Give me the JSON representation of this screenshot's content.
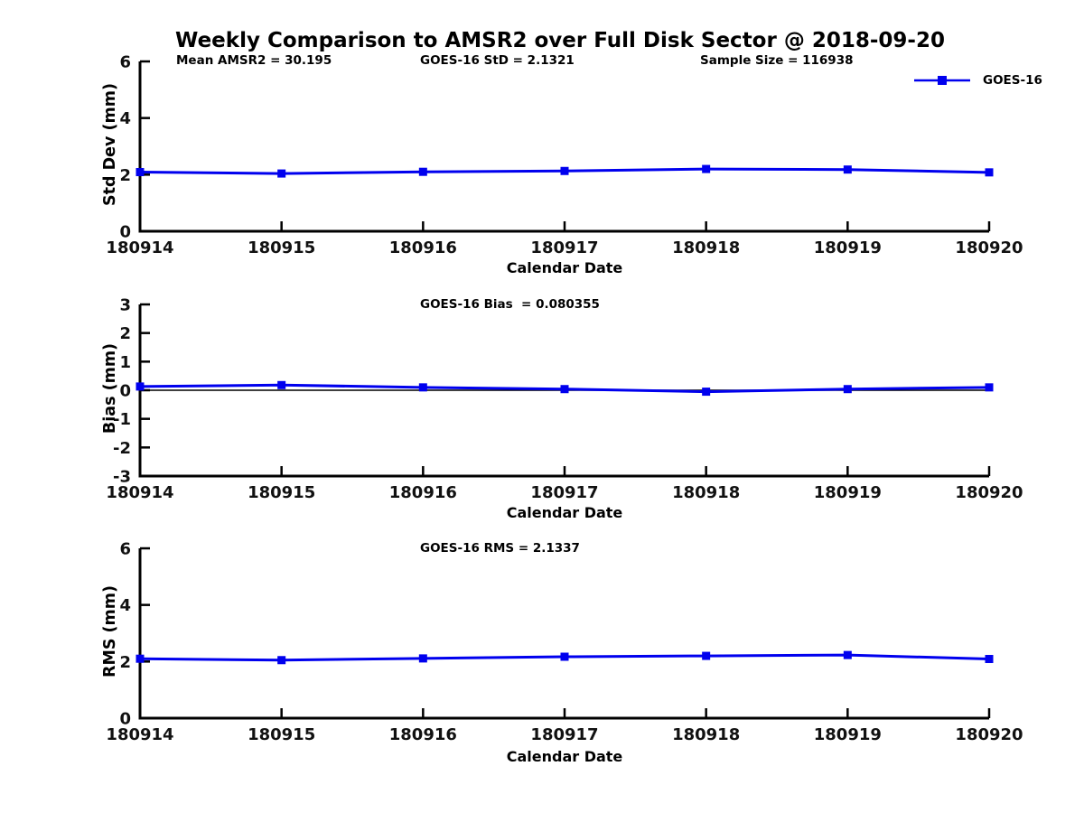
{
  "title": "Weekly Comparison to AMSR2 over Full Disk Sector @ 2018-09-20",
  "colors": {
    "series": "#0000EE",
    "axis": "#000000",
    "zero_line": "#000000",
    "background": "#FFFFFF"
  },
  "legend": {
    "label": "GOES-16"
  },
  "chart_data": [
    {
      "type": "line",
      "id": "std-dev",
      "x_categories": [
        "180914",
        "180915",
        "180916",
        "180917",
        "180918",
        "180919",
        "180920"
      ],
      "series": [
        {
          "name": "GOES-16",
          "marker": "square",
          "values": [
            2.09,
            2.04,
            2.1,
            2.13,
            2.2,
            2.18,
            2.08
          ]
        }
      ],
      "xlabel": "Calendar Date",
      "ylabel": "Std Dev (mm)",
      "ylim": [
        0,
        6
      ],
      "yticks": [
        0,
        2,
        4,
        6
      ],
      "grid": false,
      "zero_line": false,
      "legend_position": "top-right",
      "annotations": [
        "Mean AMSR2 = 30.195",
        "GOES-16 StD = 2.1321",
        "Sample Size = 116938"
      ]
    },
    {
      "type": "line",
      "id": "bias",
      "x_categories": [
        "180914",
        "180915",
        "180916",
        "180917",
        "180918",
        "180919",
        "180920"
      ],
      "series": [
        {
          "name": "GOES-16",
          "marker": "square",
          "values": [
            0.13,
            0.18,
            0.1,
            0.04,
            -0.05,
            0.04,
            0.1
          ]
        }
      ],
      "xlabel": "Calendar Date",
      "ylabel": "Bias (mm)",
      "ylim": [
        -3,
        3
      ],
      "yticks": [
        -3,
        -2,
        -1,
        0,
        1,
        2,
        3
      ],
      "grid": false,
      "zero_line": true,
      "annotations": [
        "GOES-16 Bias  = 0.080355"
      ]
    },
    {
      "type": "line",
      "id": "rms",
      "x_categories": [
        "180914",
        "180915",
        "180916",
        "180917",
        "180918",
        "180919",
        "180920"
      ],
      "series": [
        {
          "name": "GOES-16",
          "marker": "square",
          "values": [
            2.1,
            2.05,
            2.11,
            2.17,
            2.2,
            2.23,
            2.09
          ]
        }
      ],
      "xlabel": "Calendar Date",
      "ylabel": "RMS (mm)",
      "ylim": [
        0,
        6
      ],
      "yticks": [
        0,
        2,
        4,
        6
      ],
      "grid": false,
      "zero_line": false,
      "annotations": [
        "GOES-16 RMS = 2.1337"
      ]
    }
  ]
}
